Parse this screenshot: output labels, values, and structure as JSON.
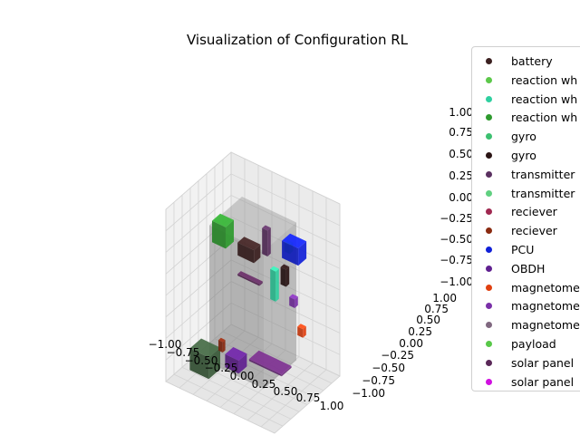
{
  "chart_data": {
    "type": "3d-scatter-boxes",
    "title": "Visualization of Configuration RL",
    "xlim": [
      -1.0,
      1.0
    ],
    "ylim": [
      -1.0,
      1.0
    ],
    "zlim": [
      -1.0,
      1.0
    ],
    "x_ticks": [
      "−1.00",
      "−0.75",
      "−0.50",
      "−0.25",
      "0.00",
      "0.25",
      "0.50",
      "0.75",
      "1.00"
    ],
    "y_ticks": [
      "−1.00",
      "−0.75",
      "−0.50",
      "−0.25",
      "0.00",
      "0.25",
      "0.50",
      "0.75",
      "1.00"
    ],
    "z_ticks": [
      "−1.00",
      "−0.75",
      "−0.50",
      "−0.25",
      "0.00",
      "0.25",
      "0.50",
      "0.75",
      "1.00"
    ],
    "grid": true,
    "legend_position": "right",
    "legend": [
      {
        "label": "battery",
        "color": "#3b2020"
      },
      {
        "label": "reaction wh",
        "color": "#5cc84a"
      },
      {
        "label": "reaction wh",
        "color": "#2fd0a0"
      },
      {
        "label": "reaction wh",
        "color": "#2e9a2e"
      },
      {
        "label": "gyro",
        "color": "#3cc070"
      },
      {
        "label": "gyro",
        "color": "#2a1414"
      },
      {
        "label": "transmitter",
        "color": "#5a3060"
      },
      {
        "label": "transmitter",
        "color": "#60d080"
      },
      {
        "label": "reciever",
        "color": "#a02850"
      },
      {
        "label": "reciever",
        "color": "#8a2a10"
      },
      {
        "label": "PCU",
        "color": "#1020d8"
      },
      {
        "label": "OBDH",
        "color": "#602090"
      },
      {
        "label": "magnetome",
        "color": "#e04010"
      },
      {
        "label": "magnetome",
        "color": "#7a30a8"
      },
      {
        "label": "magnetome",
        "color": "#806880"
      },
      {
        "label": "payload",
        "color": "#58c848"
      },
      {
        "label": "solar panel",
        "color": "#5a2858"
      },
      {
        "label": "solar panel",
        "color": "#d010e0"
      }
    ],
    "components": [
      {
        "name": "battery",
        "color": "#3a5a3a",
        "center": [
          -0.55,
          -0.55,
          -0.75
        ],
        "size": [
          0.35,
          0.35,
          0.25
        ]
      },
      {
        "name": "reaction wheel",
        "color": "#2e9a2e",
        "center": [
          -0.55,
          0.0,
          0.55
        ],
        "size": [
          0.25,
          0.25,
          0.25
        ]
      },
      {
        "name": "reaction wheel",
        "color": "#2fd0a0",
        "center": [
          0.55,
          -0.25,
          0.35
        ],
        "size": [
          0.1,
          0.1,
          0.35
        ]
      },
      {
        "name": "gyro",
        "color": "#3b2020",
        "center": [
          -0.1,
          0.05,
          0.45
        ],
        "size": [
          0.3,
          0.2,
          0.15
        ]
      },
      {
        "name": "transmitter",
        "color": "#5a3060",
        "center": [
          0.1,
          0.25,
          0.55
        ],
        "size": [
          0.1,
          0.1,
          0.3
        ]
      },
      {
        "name": "PCU",
        "color": "#1020d8",
        "center": [
          0.55,
          0.35,
          0.55
        ],
        "size": [
          0.3,
          0.25,
          0.2
        ]
      },
      {
        "name": "OBDH",
        "color": "#602090",
        "center": [
          -0.1,
          -0.35,
          -0.7
        ],
        "size": [
          0.25,
          0.25,
          0.15
        ]
      },
      {
        "name": "magnetometer",
        "color": "#e04010",
        "center": [
          0.75,
          0.25,
          -0.3
        ],
        "size": [
          0.1,
          0.1,
          0.1
        ]
      },
      {
        "name": "magnetometer",
        "color": "#7a30a8",
        "center": [
          0.6,
          0.25,
          0.0
        ],
        "size": [
          0.1,
          0.1,
          0.1
        ]
      },
      {
        "name": "solar panel",
        "color": "#6a2a7a",
        "center": [
          0.35,
          -0.05,
          -0.7
        ],
        "size": [
          0.6,
          0.3,
          0.02
        ]
      },
      {
        "name": "solar panel",
        "color": "#5a2858",
        "center": [
          -0.05,
          0.0,
          0.15
        ],
        "size": [
          0.4,
          0.1,
          0.02
        ]
      },
      {
        "name": "reciever",
        "color": "#8a2a10",
        "center": [
          -0.3,
          -0.45,
          -0.55
        ],
        "size": [
          0.08,
          0.08,
          0.12
        ]
      },
      {
        "name": "gyro",
        "color": "#2a1414",
        "center": [
          0.5,
          0.15,
          0.3
        ],
        "size": [
          0.1,
          0.1,
          0.2
        ]
      },
      {
        "name": "payload",
        "color": "#58c848",
        "center": [
          0.45,
          0.35,
          0.55
        ],
        "size": [
          0.1,
          0.1,
          0.1
        ]
      }
    ],
    "envelope": {
      "color": "#808080",
      "center": [
        0.0,
        0.0,
        0.0
      ],
      "size": [
        1.0,
        1.0,
        1.6
      ]
    }
  }
}
